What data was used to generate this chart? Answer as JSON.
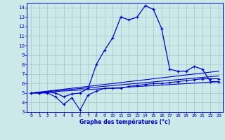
{
  "xlabel": "Graphe des températures (°c)",
  "bg_color": "#cce8e8",
  "grid_color": "#aacccc",
  "line_color": "#0000cc",
  "xlim": [
    -0.5,
    23.5
  ],
  "ylim": [
    3,
    14.5
  ],
  "xticks": [
    0,
    1,
    2,
    3,
    4,
    5,
    6,
    7,
    8,
    9,
    10,
    11,
    12,
    13,
    14,
    15,
    16,
    17,
    18,
    19,
    20,
    21,
    22,
    23
  ],
  "yticks": [
    3,
    4,
    5,
    6,
    7,
    8,
    9,
    10,
    11,
    12,
    13,
    14
  ],
  "main_x": [
    0,
    1,
    2,
    3,
    4,
    5,
    6,
    7,
    8,
    9,
    10,
    11,
    12,
    13,
    14,
    15,
    16,
    17,
    18,
    19,
    20,
    21,
    22,
    23
  ],
  "main_y": [
    5.0,
    5.0,
    5.1,
    5.0,
    4.6,
    4.9,
    5.0,
    5.5,
    8.0,
    9.5,
    10.8,
    13.0,
    12.7,
    13.0,
    14.2,
    13.8,
    11.8,
    7.5,
    7.3,
    7.3,
    7.8,
    7.5,
    6.2,
    6.2
  ],
  "line2_x": [
    0,
    1,
    2,
    3,
    4,
    5,
    6,
    7,
    8,
    9,
    10,
    11,
    12,
    13,
    14,
    15,
    16,
    17,
    18,
    19,
    20,
    21,
    22,
    23
  ],
  "line2_y": [
    5.0,
    5.0,
    5.0,
    4.6,
    3.8,
    4.5,
    3.2,
    4.8,
    5.2,
    5.5,
    5.5,
    5.5,
    5.7,
    5.8,
    5.9,
    6.0,
    6.0,
    6.1,
    6.2,
    6.3,
    6.4,
    6.5,
    6.5,
    6.5
  ],
  "line3_x": [
    0,
    23
  ],
  "line3_y": [
    5.0,
    6.8
  ],
  "line4_x": [
    0,
    23
  ],
  "line4_y": [
    5.0,
    6.2
  ],
  "line5_x": [
    0,
    23
  ],
  "line5_y": [
    5.0,
    7.3
  ]
}
